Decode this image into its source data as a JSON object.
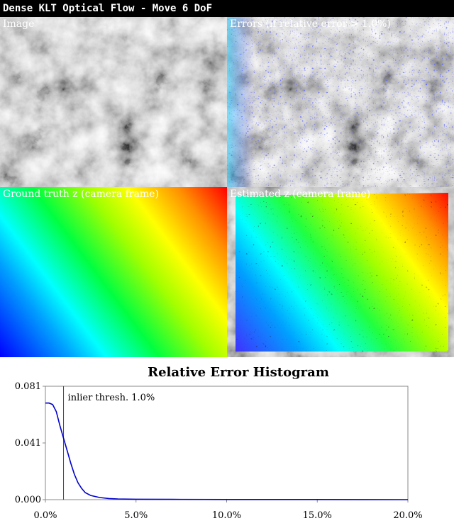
{
  "window": {
    "title": "Dense KLT Optical Flow - Move 6 DoF"
  },
  "panels": {
    "image": {
      "label": "Image"
    },
    "errors": {
      "label": "Errors (if relative error > 1.0%)"
    },
    "ground_truth": {
      "label": "Ground truth z (camera frame)"
    },
    "estimated": {
      "label": "Estimated z (camera frame)"
    }
  },
  "colors": {
    "error_overlay": "#2a2aff",
    "curve": "#0000cc",
    "title_bar": "#000000"
  },
  "chart_data": {
    "type": "line",
    "title": "Relative Error Histogram",
    "annotation": "inlier thresh. 1.0%",
    "threshold": 1.0,
    "xlim": [
      0,
      20
    ],
    "ylim": [
      0,
      0.081
    ],
    "xticks": [
      "0.0%",
      "5.0%",
      "10.0%",
      "15.0%",
      "20.0%"
    ],
    "yticks": [
      "0.081",
      "0.041",
      "0.000"
    ],
    "series": [
      {
        "x": [
          0,
          0.2,
          0.4,
          0.6,
          0.8,
          1.0,
          1.2,
          1.4,
          1.6,
          1.8,
          2.0,
          2.2,
          2.5,
          3.0,
          3.5,
          4.0,
          5.0,
          7.0,
          10.0,
          15.0,
          20.0
        ],
        "y": [
          0.069,
          0.069,
          0.068,
          0.063,
          0.053,
          0.044,
          0.035,
          0.026,
          0.018,
          0.012,
          0.008,
          0.005,
          0.003,
          0.0015,
          0.0008,
          0.0005,
          0.0003,
          0.0002,
          0.0001,
          0.0001,
          0.0
        ]
      }
    ]
  }
}
